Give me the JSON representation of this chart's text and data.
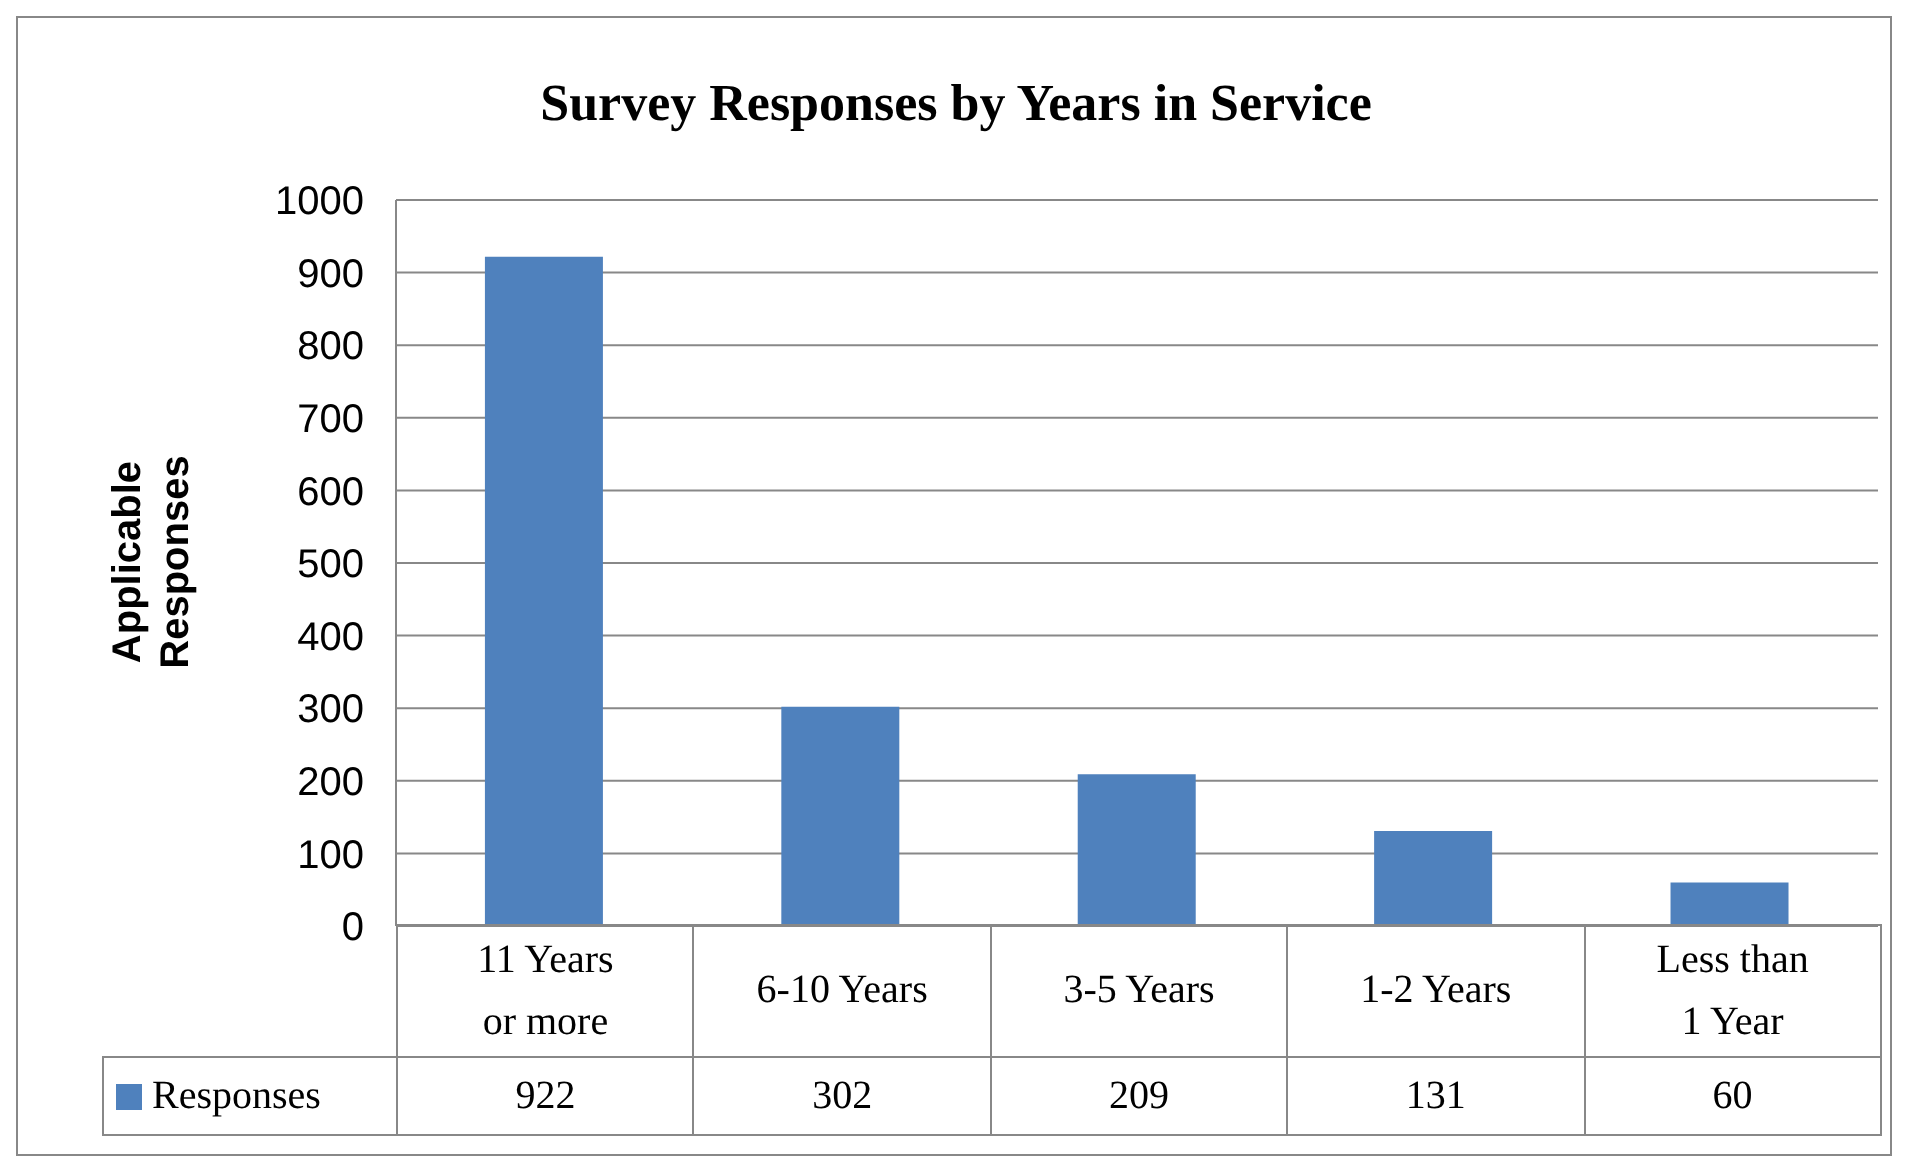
{
  "chart_data": {
    "type": "bar",
    "title": "Survey Responses by Years in Service",
    "ylabel": "Applicable Responses",
    "categories": [
      "11 Years or more",
      "6-10 Years",
      "3-5 Years",
      "1-2 Years",
      "Less than 1 Year"
    ],
    "series": [
      {
        "name": "Responses",
        "color": "#4f81bd",
        "values": [
          922,
          302,
          209,
          131,
          60
        ]
      }
    ],
    "ylim": [
      0,
      1000
    ],
    "yticks": [
      0,
      100,
      200,
      300,
      400,
      500,
      600,
      700,
      800,
      900,
      1000
    ],
    "grid": "y",
    "legend": "bottom",
    "data_labels": true
  }
}
